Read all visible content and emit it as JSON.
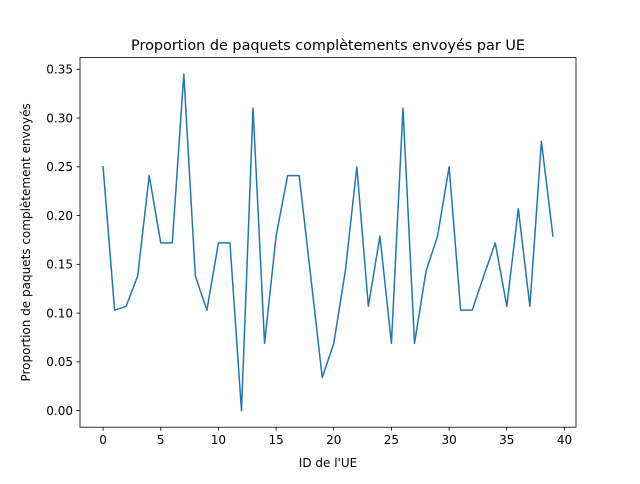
{
  "chart_data": {
    "type": "line",
    "title": "Proportion de paquets complètements envoyés par UE",
    "xlabel": "ID de l'UE",
    "ylabel": "Proportion de paquets complètement envoyés",
    "xlim": [
      -2,
      41
    ],
    "ylim": [
      -0.017,
      0.362
    ],
    "xticks": [
      0,
      5,
      10,
      15,
      20,
      25,
      30,
      35,
      40
    ],
    "yticks": [
      0.0,
      0.05,
      0.1,
      0.15,
      0.2,
      0.25,
      0.3,
      0.35
    ],
    "xtick_labels": [
      "0",
      "5",
      "10",
      "15",
      "20",
      "25",
      "30",
      "35",
      "40"
    ],
    "ytick_labels": [
      "0.00",
      "0.05",
      "0.10",
      "0.15",
      "0.20",
      "0.25",
      "0.30",
      "0.35"
    ],
    "grid": false,
    "legend": "none",
    "series": [
      {
        "color": "#1f77b4",
        "x": [
          0,
          1,
          2,
          3,
          4,
          5,
          6,
          7,
          8,
          9,
          10,
          11,
          12,
          13,
          14,
          15,
          16,
          17,
          18,
          19,
          20,
          21,
          22,
          23,
          24,
          25,
          26,
          27,
          28,
          29,
          30,
          31,
          32,
          33,
          34,
          35,
          36,
          37,
          38,
          39
        ],
        "values": [
          0.25,
          0.103,
          0.107,
          0.138,
          0.241,
          0.172,
          0.172,
          0.345,
          0.138,
          0.103,
          0.172,
          0.172,
          0.0,
          0.31,
          0.069,
          0.179,
          0.241,
          0.241,
          0.138,
          0.034,
          0.069,
          0.143,
          0.25,
          0.107,
          0.179,
          0.069,
          0.31,
          0.069,
          0.143,
          0.179,
          0.25,
          0.103,
          0.103,
          0.138,
          0.172,
          0.107,
          0.207,
          0.107,
          0.276,
          0.179
        ]
      }
    ]
  }
}
